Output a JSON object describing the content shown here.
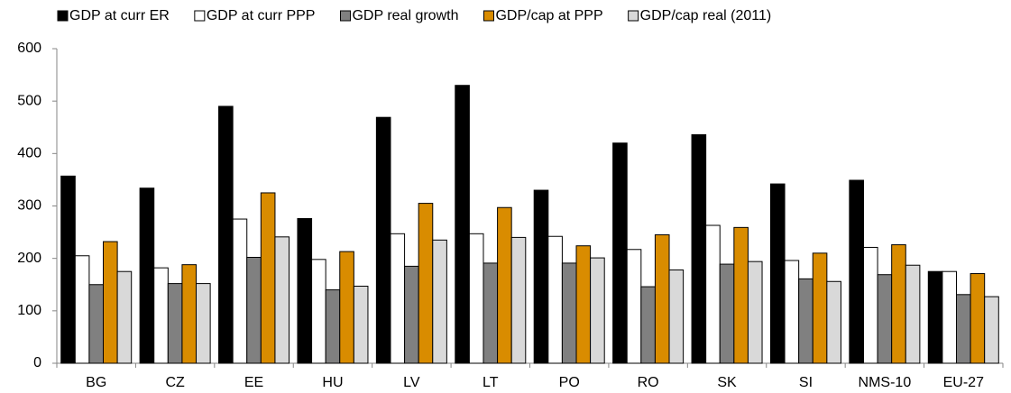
{
  "chart_data": {
    "type": "bar",
    "categories": [
      "BG",
      "CZ",
      "EE",
      "HU",
      "LV",
      "LT",
      "PO",
      "RO",
      "SK",
      "SI",
      "NMS-10",
      "EU-27"
    ],
    "series": [
      {
        "name": "GDP at curr ER",
        "color": "#000000",
        "values": [
          357,
          334,
          490,
          276,
          469,
          530,
          330,
          420,
          436,
          342,
          349,
          175
        ]
      },
      {
        "name": "GDP at curr PPP",
        "color": "#ffffff",
        "values": [
          205,
          182,
          275,
          198,
          247,
          247,
          242,
          217,
          263,
          196,
          221,
          175
        ]
      },
      {
        "name": "GDP real growth",
        "color": "#808080",
        "values": [
          150,
          152,
          202,
          140,
          185,
          191,
          191,
          146,
          189,
          161,
          169,
          131
        ]
      },
      {
        "name": "GDP/cap at PPP",
        "color": "#d98c00",
        "values": [
          232,
          188,
          325,
          213,
          305,
          297,
          224,
          245,
          259,
          210,
          226,
          171
        ]
      },
      {
        "name": "GDP/cap real (2011)",
        "color": "#d9d9d9",
        "values": [
          175,
          152,
          241,
          147,
          235,
          240,
          201,
          178,
          194,
          156,
          187,
          127
        ]
      }
    ],
    "ylim": [
      0,
      600
    ],
    "yticks": [
      0,
      100,
      200,
      300,
      400,
      500,
      600
    ],
    "legend": "top"
  }
}
